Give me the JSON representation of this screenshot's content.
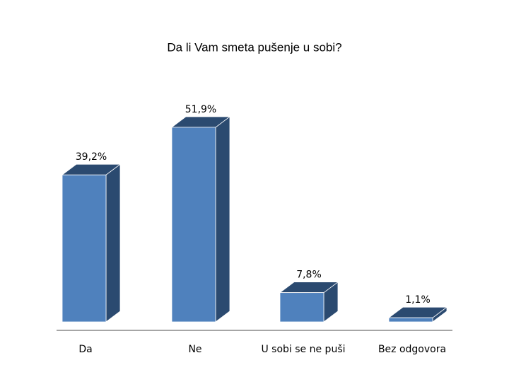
{
  "chart_data": {
    "type": "bar3d",
    "title": "Da li Vam smeta pušenje u sobi?",
    "categories": [
      "Da",
      "Ne",
      "U sobi se ne puši",
      "Bez odgovora"
    ],
    "values": [
      39.2,
      51.9,
      7.8,
      1.1
    ],
    "value_labels": [
      "39,2%",
      "51,9%",
      "7,8%",
      "1,1%"
    ],
    "color": "#4f81bd"
  }
}
